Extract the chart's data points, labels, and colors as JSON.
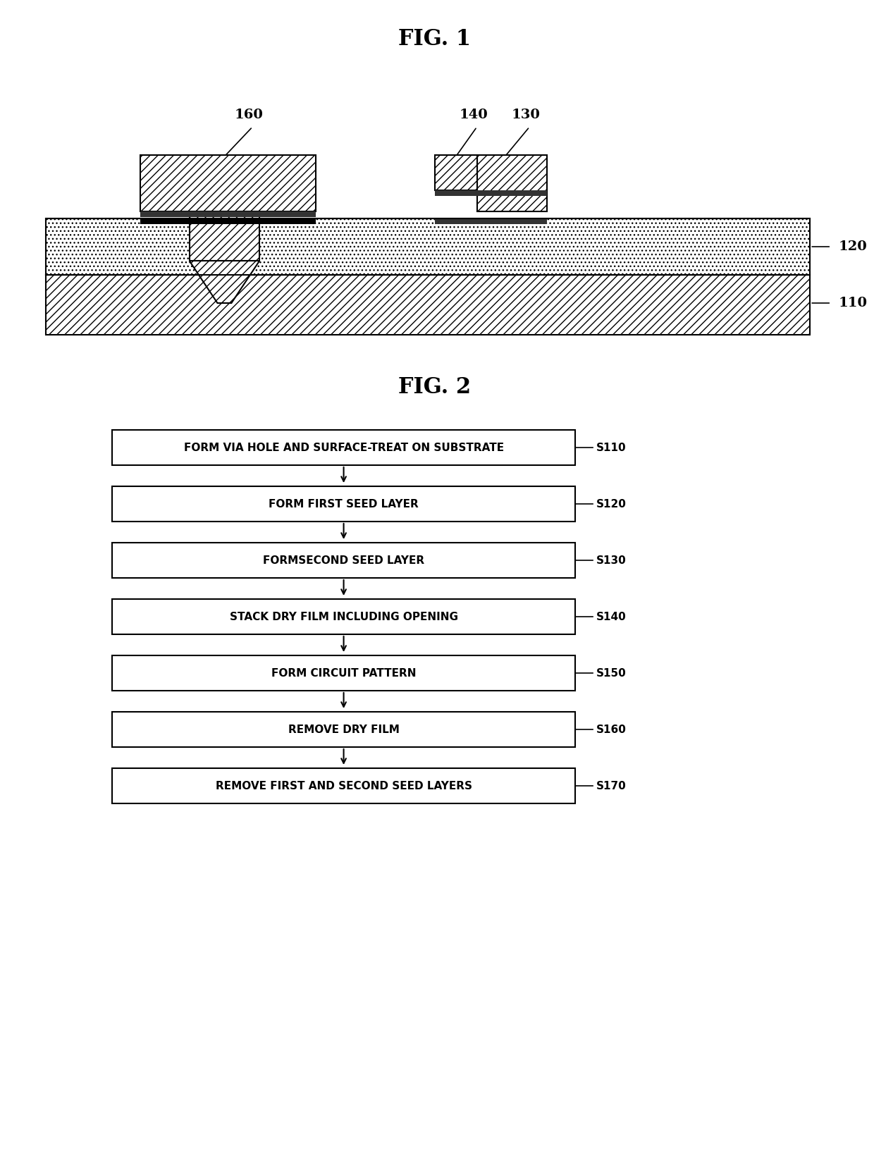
{
  "fig1_title": "FIG. 1",
  "fig2_title": "FIG. 2",
  "bg_color": "#ffffff",
  "box_steps": [
    {
      "label": "FORM VIA HOLE AND SURFACE-TREAT ON SUBSTRATE",
      "step": "S110"
    },
    {
      "label": "FORM FIRST SEED LAYER",
      "step": "S120"
    },
    {
      "label": "FORMSECOND SEED LAYER",
      "step": "S130"
    },
    {
      "label": "STACK DRY FILM INCLUDING OPENING",
      "step": "S140"
    },
    {
      "label": "FORM CIRCUIT PATTERN",
      "step": "S150"
    },
    {
      "label": "REMOVE DRY FILM",
      "step": "S160"
    },
    {
      "label": "REMOVE FIRST AND SECOND SEED LAYERS",
      "step": "S170"
    }
  ],
  "label_110": "110",
  "label_120": "120",
  "label_130": "130",
  "label_140": "140",
  "label_160": "160"
}
